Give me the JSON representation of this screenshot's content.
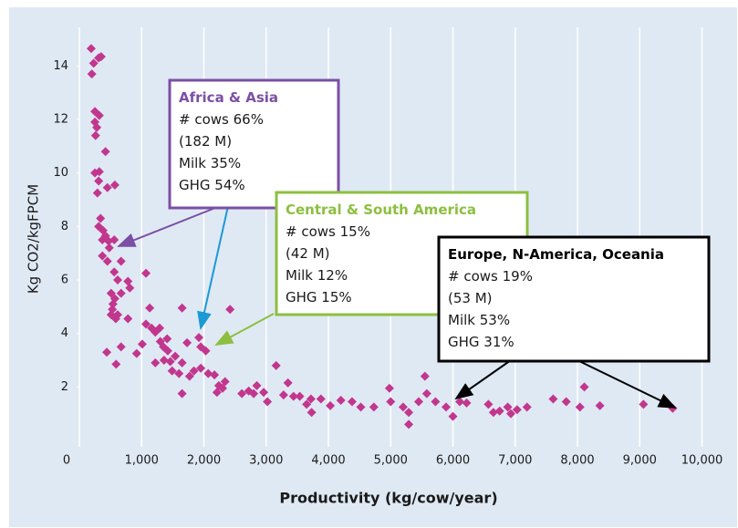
{
  "chart_data": {
    "type": "scatter",
    "x_label": "Productivity (kg/cow/year)",
    "y_label": "Kg CO2/kgFPCM",
    "xlim": [
      0,
      10300
    ],
    "ylim": [
      0,
      15
    ],
    "xticks": [
      0,
      {
        "value": 1000,
        "label": "1,000"
      },
      {
        "value": 2000,
        "label": "2,000"
      },
      {
        "value": 3000,
        "label": "3,000"
      },
      {
        "value": 4000,
        "label": "4,000"
      },
      {
        "value": 5000,
        "label": "5,000"
      },
      {
        "value": 6000,
        "label": "6,000"
      },
      {
        "value": 7000,
        "label": "7,000"
      },
      {
        "value": 8000,
        "label": "8,000"
      },
      {
        "value": 9000,
        "label": "9,000"
      },
      {
        "value": 10000,
        "label": "10,000"
      }
    ],
    "yticks": [
      2,
      4,
      6,
      8,
      10,
      12,
      14
    ],
    "grid": "x",
    "color": "#c2378e",
    "x": [
      190,
      230,
      310,
      350,
      200,
      250,
      320,
      250,
      280,
      260,
      420,
      250,
      320,
      310,
      290,
      450,
      570,
      340,
      310,
      380,
      420,
      470,
      560,
      370,
      480,
      370,
      450,
      670,
      560,
      615,
      780,
      810,
      510,
      570,
      540,
      530,
      510,
      585,
      615,
      780,
      670,
      1070,
      1130,
      1070,
      1160,
      1220,
      1290,
      1300,
      1350,
      1410,
      1420,
      1010,
      670,
      440,
      920,
      590,
      1220,
      1360,
      1460,
      1490,
      1540,
      1600,
      1650,
      1730,
      1650,
      1770,
      1840,
      1950,
      1950,
      1920,
      2030,
      2070,
      2170,
      2240,
      2210,
      2300,
      2340,
      2420,
      1650,
      2610,
      2720,
      2800,
      2850,
      2960,
      3020,
      3160,
      3280,
      3350,
      3440,
      3540,
      3650,
      3720,
      3730,
      3880,
      4030,
      4200,
      4380,
      4520,
      4730,
      4980,
      5000,
      5200,
      5290,
      5290,
      5450,
      5550,
      5580,
      5720,
      5890,
      6000,
      6110,
      6220,
      6570,
      6650,
      6750,
      6880,
      6930,
      7030,
      7190,
      7610,
      7820,
      8040,
      8110,
      8360,
      9060,
      9530
    ],
    "y": [
      14.65,
      14.1,
      14.3,
      14.35,
      13.7,
      12.3,
      12.15,
      11.9,
      11.7,
      11.4,
      10.8,
      10.0,
      10.05,
      9.7,
      9.25,
      9.45,
      9.55,
      8.3,
      8.0,
      7.85,
      7.65,
      7.45,
      7.5,
      7.5,
      7.2,
      6.9,
      6.7,
      6.7,
      6.3,
      6.0,
      5.95,
      5.7,
      5.5,
      5.3,
      5.1,
      4.9,
      4.7,
      4.55,
      4.7,
      4.55,
      5.5,
      6.25,
      4.95,
      4.35,
      4.2,
      4.05,
      4.2,
      3.7,
      3.5,
      3.8,
      3.35,
      3.6,
      3.5,
      3.3,
      3.25,
      2.85,
      2.9,
      3.0,
      2.95,
      2.6,
      3.15,
      2.5,
      2.9,
      3.65,
      4.95,
      2.4,
      2.6,
      2.7,
      3.5,
      3.85,
      3.35,
      2.5,
      2.45,
      2.05,
      1.8,
      1.95,
      2.2,
      4.9,
      1.75,
      1.75,
      1.85,
      1.75,
      2.05,
      1.8,
      1.45,
      2.8,
      1.7,
      2.15,
      1.65,
      1.65,
      1.35,
      1.55,
      1.05,
      1.55,
      1.3,
      1.5,
      1.45,
      1.25,
      1.25,
      1.95,
      1.45,
      1.25,
      1.05,
      0.6,
      1.45,
      2.4,
      1.75,
      1.45,
      1.25,
      0.9,
      1.45,
      1.4,
      1.35,
      1.05,
      1.1,
      1.25,
      1.0,
      1.15,
      1.25,
      1.55,
      1.45,
      1.25,
      2.0,
      1.3,
      1.35,
      1.2
    ],
    "annotations": [
      {
        "title": "Africa & Asia",
        "lines": [
          "# cows 66%",
          "(182 M)",
          "Milk 35%",
          "GHG 54%"
        ],
        "color": "#7b4fa5"
      },
      {
        "title": "Central & South America",
        "lines": [
          "# cows 15%",
          "(42 M)",
          "Milk 12%",
          "GHG 15%"
        ],
        "color": "#8cbf3f"
      },
      {
        "title": "Europe, N-America, Oceania",
        "lines": [
          "# cows 19%",
          "(53 M)",
          "Milk 53%",
          "GHG 31%"
        ],
        "color": "#000000"
      }
    ]
  }
}
